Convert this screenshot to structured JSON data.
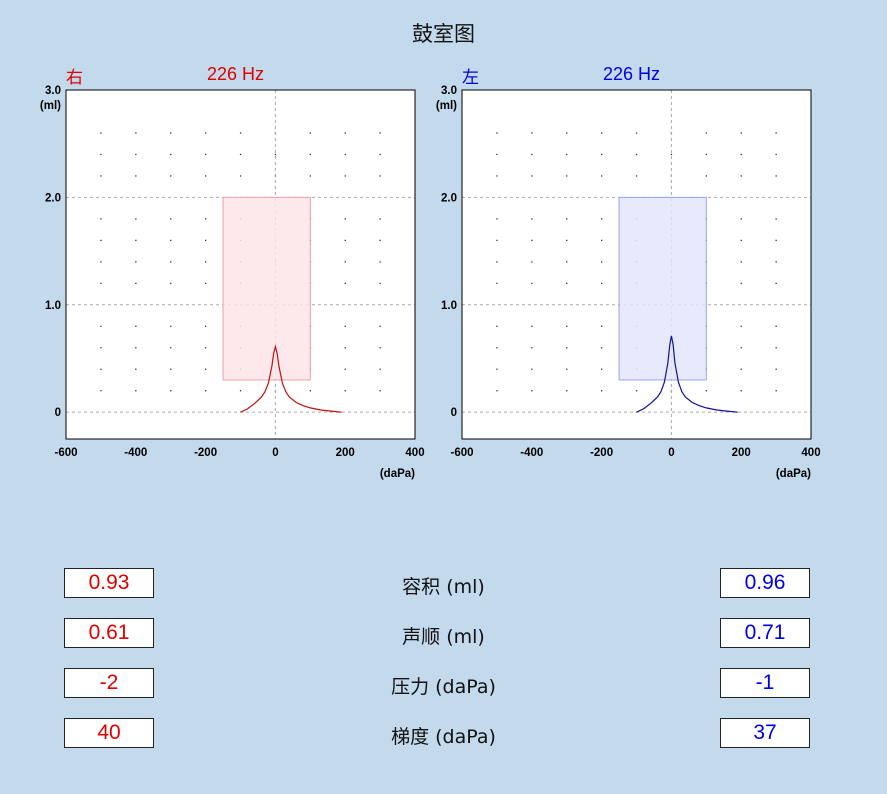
{
  "title": "鼓室图",
  "units": {
    "y": "(ml)",
    "x": "(daPa)"
  },
  "colors": {
    "right": "#e00000",
    "left": "#0000e0",
    "background": "#c3d9ec"
  },
  "charts": [
    {
      "side": "右",
      "frequency": "226 Hz",
      "color": "#e00000",
      "fill": "#fde4e8",
      "stroke": "#f2a0a8",
      "curve": "#c01010"
    },
    {
      "side": "左",
      "frequency": "226 Hz",
      "color": "#0000e0",
      "fill": "#e3e6fb",
      "stroke": "#9aa2f0",
      "curve": "#1010a0"
    }
  ],
  "chart_data": [
    {
      "type": "line",
      "title": "226 Hz",
      "ylabel": "(ml)",
      "xlabel": "(daPa)",
      "xlim": [
        -600,
        400
      ],
      "ylim": [
        -0.25,
        3.0
      ],
      "x_ticks": [
        "-600",
        "-400",
        "-200",
        "0",
        "200",
        "400"
      ],
      "y_ticks": [
        "0",
        "1.0",
        "2.0",
        "3.0"
      ],
      "normal_range": {
        "x": [
          -150,
          100
        ],
        "y": [
          0.3,
          2.0
        ]
      },
      "series": [
        {
          "x": [
            -100,
            -80,
            -60,
            -40,
            -30,
            -20,
            -10,
            -5,
            0,
            5,
            10,
            20,
            30,
            40,
            60,
            80,
            100,
            130,
            160,
            190
          ],
          "y": [
            0.0,
            0.03,
            0.08,
            0.14,
            0.19,
            0.27,
            0.43,
            0.55,
            0.61,
            0.55,
            0.43,
            0.27,
            0.19,
            0.14,
            0.09,
            0.06,
            0.04,
            0.02,
            0.01,
            0.0
          ]
        }
      ]
    },
    {
      "type": "line",
      "title": "226 Hz",
      "ylabel": "(ml)",
      "xlabel": "(daPa)",
      "xlim": [
        -600,
        400
      ],
      "ylim": [
        -0.25,
        3.0
      ],
      "x_ticks": [
        "-600",
        "-400",
        "-200",
        "0",
        "200",
        "400"
      ],
      "y_ticks": [
        "0",
        "1.0",
        "2.0",
        "3.0"
      ],
      "normal_range": {
        "x": [
          -150,
          100
        ],
        "y": [
          0.3,
          2.0
        ]
      },
      "series": [
        {
          "x": [
            -100,
            -80,
            -60,
            -40,
            -30,
            -20,
            -10,
            -5,
            0,
            5,
            10,
            20,
            30,
            40,
            60,
            80,
            100,
            130,
            160,
            190
          ],
          "y": [
            0.0,
            0.03,
            0.08,
            0.14,
            0.19,
            0.28,
            0.46,
            0.62,
            0.71,
            0.63,
            0.46,
            0.28,
            0.19,
            0.14,
            0.09,
            0.06,
            0.04,
            0.02,
            0.01,
            0.0
          ]
        }
      ]
    }
  ],
  "rows": [
    {
      "label": "容积 (ml)",
      "right": "0.93",
      "left": "0.96"
    },
    {
      "label": "声顺 (ml)",
      "right": "0.61",
      "left": "0.71"
    },
    {
      "label": "压力 (daPa)",
      "right": "-2",
      "left": "-1"
    },
    {
      "label": "梯度 (daPa)",
      "right": "40",
      "left": "37"
    }
  ]
}
